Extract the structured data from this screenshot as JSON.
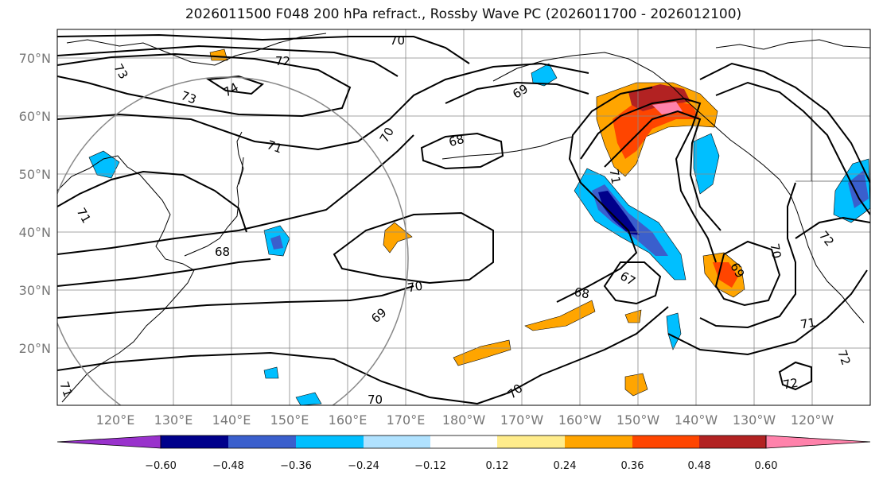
{
  "title": "2026011500 F048 200 hPa refract., Rossby Wave PC (2026011700 - 2026012100)",
  "lat_labels": [
    "70°N",
    "60°N",
    "50°N",
    "40°N",
    "30°N",
    "20°N"
  ],
  "lon_labels": [
    "120°E",
    "130°E",
    "140°E",
    "150°E",
    "160°E",
    "170°E",
    "180°W",
    "170°W",
    "160°W",
    "150°W",
    "140°W",
    "130°W",
    "120°W"
  ],
  "contour_labels": [
    {
      "text": "70"
    },
    {
      "text": "72"
    },
    {
      "text": "73"
    },
    {
      "text": "74"
    },
    {
      "text": "73"
    },
    {
      "text": "71"
    },
    {
      "text": "71"
    },
    {
      "text": "69"
    },
    {
      "text": "68"
    },
    {
      "text": "70"
    },
    {
      "text": "68"
    },
    {
      "text": "70"
    },
    {
      "text": "69"
    },
    {
      "text": "70"
    },
    {
      "text": "68"
    },
    {
      "text": "67"
    },
    {
      "text": "71"
    },
    {
      "text": "69"
    },
    {
      "text": "70"
    },
    {
      "text": "72"
    },
    {
      "text": "71"
    },
    {
      "text": "72"
    },
    {
      "text": "70"
    },
    {
      "text": "71"
    },
    {
      "text": "72"
    }
  ],
  "colorbar": {
    "ticks": [
      "−0.60",
      "−0.48",
      "−0.36",
      "−0.24",
      "−0.12",
      "0.12",
      "0.24",
      "0.36",
      "0.48",
      "0.60"
    ],
    "colors": [
      "#9932cc",
      "#00008b",
      "#3a5fcd",
      "#00bfff",
      "#b0e2ff",
      "#ffffff",
      "#ffec8b",
      "#ffa500",
      "#ff4500",
      "#b22222",
      "#ff82ab"
    ]
  }
}
